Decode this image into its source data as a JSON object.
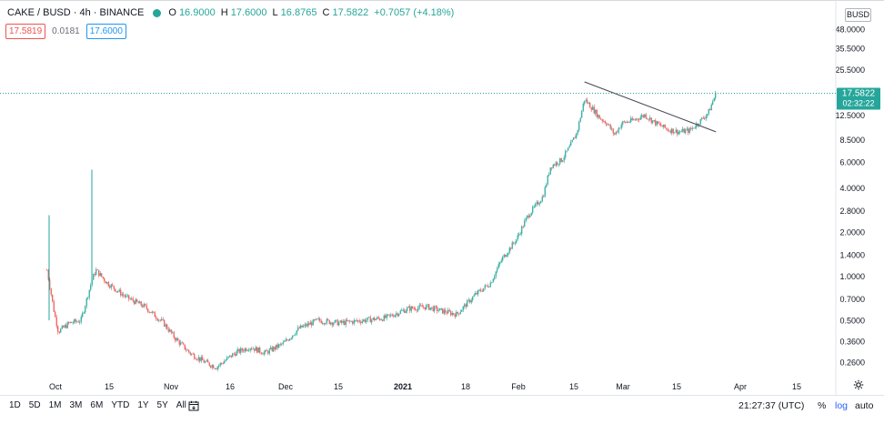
{
  "header": {
    "symbol": "CAKE / BUSD · 4h · BINANCE",
    "open_label": "O",
    "open": "16.9000",
    "high_label": "H",
    "high": "17.6000",
    "low_label": "L",
    "low": "16.8765",
    "close_label": "C",
    "close": "17.5822",
    "change": "+0.7057 (+4.18%)",
    "status_color": "#26a69a"
  },
  "quote": {
    "bid": "17.5819",
    "spread": "0.0181",
    "ask": "17.6000"
  },
  "currency_button": "BUSD",
  "price_tag": {
    "price": "17.5822",
    "countdown": "02:32:22",
    "color": "#26a69a"
  },
  "bottom_bar": {
    "ranges": [
      "1D",
      "5D",
      "1M",
      "3M",
      "6M",
      "YTD",
      "1Y",
      "5Y",
      "All"
    ],
    "time": "21:27:37 (UTC)",
    "percent": "%",
    "log": "log",
    "auto": "auto"
  },
  "chart_data": {
    "type": "candlestick",
    "y_scale": "log",
    "y_tick_labels": [
      "48.0000",
      "35.5000",
      "25.5000",
      "12.5000",
      "8.5000",
      "6.0000",
      "4.0000",
      "2.8000",
      "2.0000",
      "1.4000",
      "1.0000",
      "0.7000",
      "0.5000",
      "0.3600",
      "0.2600"
    ],
    "x_tick_labels": [
      "Oct",
      "15",
      "Nov",
      "16",
      "Dec",
      "15",
      "2021",
      "18",
      "Feb",
      "15",
      "Mar",
      "15",
      "Apr",
      "15"
    ],
    "up_color": "#26a69a",
    "down_color": "#ef5350",
    "series": [
      {
        "x": "2020-09-29",
        "y": 1.1
      },
      {
        "x": "2020-10-01",
        "y": 0.55
      },
      {
        "x": "2020-10-02",
        "y": 0.42
      },
      {
        "x": "2020-10-05",
        "y": 0.48
      },
      {
        "x": "2020-10-08",
        "y": 0.5
      },
      {
        "x": "2020-10-11",
        "y": 0.95
      },
      {
        "x": "2020-10-12",
        "y": 1.1
      },
      {
        "x": "2020-10-15",
        "y": 0.9
      },
      {
        "x": "2020-10-20",
        "y": 0.72
      },
      {
        "x": "2020-10-25",
        "y": 0.62
      },
      {
        "x": "2020-10-30",
        "y": 0.48
      },
      {
        "x": "2020-11-02",
        "y": 0.38
      },
      {
        "x": "2020-11-06",
        "y": 0.3
      },
      {
        "x": "2020-11-10",
        "y": 0.26
      },
      {
        "x": "2020-11-13",
        "y": 0.24
      },
      {
        "x": "2020-11-18",
        "y": 0.3
      },
      {
        "x": "2020-11-22",
        "y": 0.33
      },
      {
        "x": "2020-11-26",
        "y": 0.3
      },
      {
        "x": "2020-12-01",
        "y": 0.35
      },
      {
        "x": "2020-12-05",
        "y": 0.44
      },
      {
        "x": "2020-12-10",
        "y": 0.5
      },
      {
        "x": "2020-12-16",
        "y": 0.48
      },
      {
        "x": "2020-12-22",
        "y": 0.5
      },
      {
        "x": "2020-12-28",
        "y": 0.52
      },
      {
        "x": "2021-01-03",
        "y": 0.6
      },
      {
        "x": "2021-01-08",
        "y": 0.62
      },
      {
        "x": "2021-01-12",
        "y": 0.58
      },
      {
        "x": "2021-01-16",
        "y": 0.55
      },
      {
        "x": "2021-01-21",
        "y": 0.75
      },
      {
        "x": "2021-01-25",
        "y": 0.9
      },
      {
        "x": "2021-01-28",
        "y": 1.3
      },
      {
        "x": "2021-02-01",
        "y": 1.8
      },
      {
        "x": "2021-02-04",
        "y": 2.6
      },
      {
        "x": "2021-02-06",
        "y": 3.0
      },
      {
        "x": "2021-02-08",
        "y": 3.5
      },
      {
        "x": "2021-02-10",
        "y": 5.6
      },
      {
        "x": "2021-02-13",
        "y": 6.2
      },
      {
        "x": "2021-02-15",
        "y": 7.5
      },
      {
        "x": "2021-02-17",
        "y": 9.5
      },
      {
        "x": "2021-02-19",
        "y": 16.0
      },
      {
        "x": "2021-02-21",
        "y": 14.0
      },
      {
        "x": "2021-02-23",
        "y": 12.0
      },
      {
        "x": "2021-02-25",
        "y": 11.0
      },
      {
        "x": "2021-02-27",
        "y": 9.2
      },
      {
        "x": "2021-03-01",
        "y": 11.0
      },
      {
        "x": "2021-03-04",
        "y": 11.5
      },
      {
        "x": "2021-03-07",
        "y": 12.5
      },
      {
        "x": "2021-03-10",
        "y": 11.0
      },
      {
        "x": "2021-03-13",
        "y": 10.0
      },
      {
        "x": "2021-03-16",
        "y": 9.6
      },
      {
        "x": "2021-03-19",
        "y": 9.8
      },
      {
        "x": "2021-03-22",
        "y": 11.5
      },
      {
        "x": "2021-03-24",
        "y": 13.0
      },
      {
        "x": "2021-03-26",
        "y": 17.58
      }
    ],
    "trendline": {
      "from": {
        "x": "2021-02-19",
        "y": 21.0
      },
      "to": {
        "x": "2021-03-26",
        "y": 9.6
      }
    },
    "grid": false,
    "legend": "none"
  }
}
